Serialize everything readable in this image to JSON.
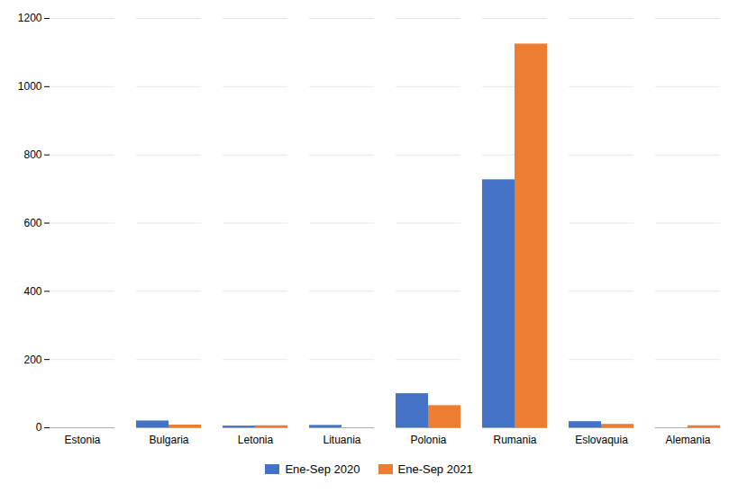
{
  "chart_data": {
    "type": "bar",
    "categories": [
      "Estonia",
      "Bulgaria",
      "Letonia",
      "Lituania",
      "Polonia",
      "Rumania",
      "Eslovaquia",
      "Alemania"
    ],
    "series": [
      {
        "name": "Ene-Sep 2020",
        "color": "#4472C4",
        "values": [
          0,
          20,
          5,
          7,
          100,
          727,
          18,
          0
        ]
      },
      {
        "name": "Ene-Sep 2021",
        "color": "#ED7D31",
        "values": [
          0,
          8,
          6,
          0,
          65,
          1125,
          10,
          6
        ]
      }
    ],
    "ylim": [
      0,
      1200
    ],
    "yticks": [
      0,
      200,
      400,
      600,
      800,
      1000,
      1200
    ],
    "grid": true,
    "legend": "bottom"
  }
}
